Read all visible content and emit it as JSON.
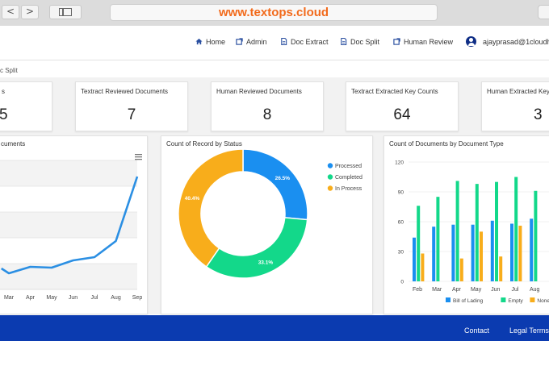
{
  "browser": {
    "url": "www.textops.cloud",
    "back": "<",
    "forward": ">"
  },
  "nav": {
    "home": "Home",
    "admin": "Admin",
    "doc_extract": "Doc Extract",
    "doc_split": "Doc Split",
    "human_review": "Human Review",
    "user": "ajayprasad@1cloudh"
  },
  "breadcrumb": "c Split",
  "kpis": [
    {
      "label": "s",
      "value": "5"
    },
    {
      "label": "Textract Reviewed Documents",
      "value": "7"
    },
    {
      "label": "Human Reviewed Documents",
      "value": "8"
    },
    {
      "label": "Textract Extracted Key Counts",
      "value": "64"
    },
    {
      "label": "Human Extracted Key C",
      "value": "3"
    }
  ],
  "panels": {
    "line_title": "cuments",
    "donut_title": "Count of Record by Status",
    "bar_title": "Count of Documents by Document Type"
  },
  "chart_data": [
    {
      "type": "line",
      "title": "cuments",
      "x": [
        "Mar",
        "Apr",
        "May",
        "Jun",
        "Jul",
        "Aug",
        "Sep"
      ],
      "series": [
        {
          "values": [
            2,
            6,
            5.5,
            10,
            12,
            22,
            62
          ]
        }
      ],
      "ylim": [
        -8,
        72
      ],
      "grid": true,
      "color": "#2b8fe3"
    },
    {
      "type": "pie",
      "title": "Count of Record by Status",
      "categories": [
        "Processed",
        "Completed",
        "In Process"
      ],
      "values": [
        26.5,
        33.1,
        40.4
      ],
      "labels": [
        "26.5%",
        "33.1%",
        "40.4%"
      ],
      "colors": [
        "#1a8ff0",
        "#13d88a",
        "#f8ad1b"
      ],
      "legend": "right"
    },
    {
      "type": "bar",
      "title": "Count of Documents by Document Type",
      "categories": [
        "Feb",
        "Mar",
        "Apr",
        "May",
        "Jun",
        "Jul",
        "Aug"
      ],
      "series": [
        {
          "name": "Bill of Lading",
          "values": [
            44,
            55,
            57,
            57,
            61,
            58,
            63
          ]
        },
        {
          "name": "Empty",
          "values": [
            76,
            85,
            101,
            98,
            100,
            105,
            91
          ]
        },
        {
          "name": "None",
          "values": [
            28,
            0,
            23,
            50,
            25,
            56,
            0
          ]
        }
      ],
      "colors": [
        "#1a8ff0",
        "#13d88a",
        "#f8ad1b"
      ],
      "yticks": [
        "0",
        "30",
        "60",
        "90",
        "120"
      ],
      "ylim": [
        0,
        120
      ],
      "legend": "bottom"
    }
  ],
  "footer": {
    "contact": "Contact",
    "legal": "Legal Terms"
  }
}
